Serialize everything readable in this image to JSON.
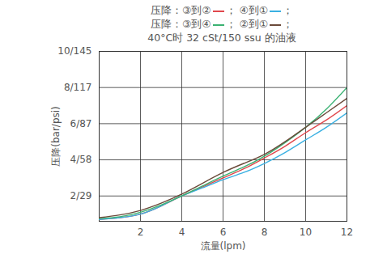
{
  "chart_data": {
    "type": "line",
    "legend_title": "压降：",
    "legend_separator": "；",
    "subtitle": "40°C时 32 cSt/150 ssu 的油液",
    "x_label": "流量(lpm)",
    "y_label": "压降(bar/psi)",
    "x": [
      0,
      1,
      2,
      3,
      4,
      5,
      6,
      7,
      8,
      9,
      10,
      11,
      12
    ],
    "series": [
      {
        "name": "③到②",
        "color": "#e0474c",
        "values": [
          0.7,
          0.8,
          1.0,
          1.45,
          2.0,
          2.5,
          3.0,
          3.5,
          4.1,
          4.75,
          5.5,
          6.2,
          7.0
        ]
      },
      {
        "name": "④到①",
        "color": "#3ab0e2",
        "values": [
          0.7,
          0.8,
          1.0,
          1.45,
          2.0,
          2.45,
          2.9,
          3.3,
          3.8,
          4.4,
          5.1,
          5.8,
          6.6
        ]
      },
      {
        "name": "③到④",
        "color": "#3bb273",
        "values": [
          0.75,
          0.85,
          1.1,
          1.5,
          2.0,
          2.55,
          3.1,
          3.6,
          4.2,
          4.95,
          5.8,
          6.8,
          8.0
        ]
      },
      {
        "name": "②到①",
        "color": "#6b4a3a",
        "values": [
          0.8,
          0.95,
          1.2,
          1.6,
          2.1,
          2.7,
          3.3,
          3.8,
          4.3,
          5.0,
          5.8,
          6.6,
          7.4
        ]
      }
    ],
    "xlim": [
      0,
      12
    ],
    "xticks": [
      2,
      4,
      6,
      8,
      10,
      12
    ],
    "ylim": [
      0.6,
      10
    ],
    "yticks": [
      {
        "value": 2,
        "label": "2/29"
      },
      {
        "value": 4,
        "label": "4/58"
      },
      {
        "value": 6,
        "label": "6/87"
      },
      {
        "value": 8,
        "label": "8/117"
      },
      {
        "value": 10,
        "label": "10/145"
      }
    ],
    "grid": true
  }
}
